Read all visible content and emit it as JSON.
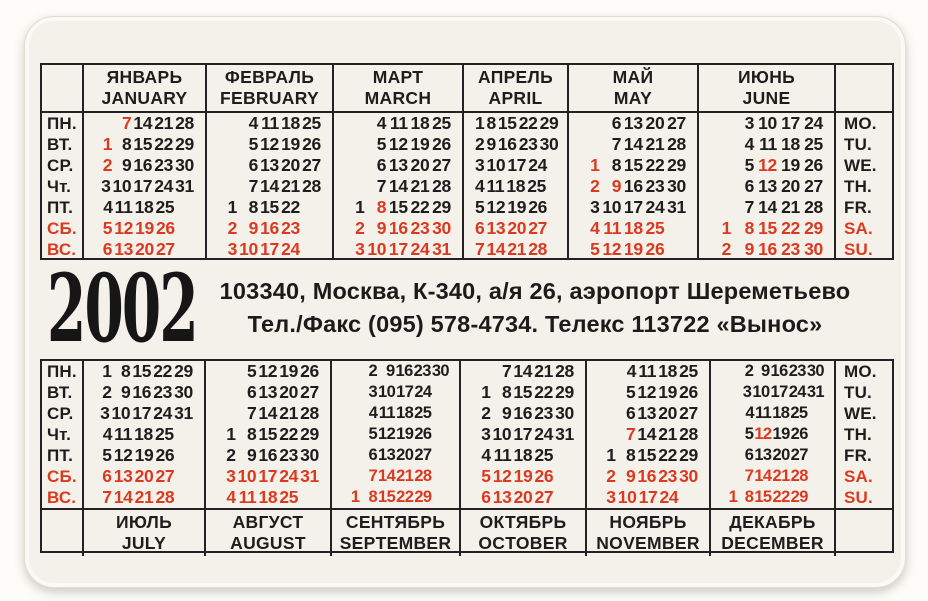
{
  "year": "2002",
  "address_line1": "103340, Москва, К-340, а/я 26, аэропорт Шереметьево",
  "address_line2": "Тел./Факс (095) 578-4734. Телекс 113722 «Вынос»",
  "weekdays_ru": [
    "ПН.",
    "ВТ.",
    "СР.",
    "Чт.",
    "ПТ.",
    "СБ.",
    "ВС."
  ],
  "weekdays_en": [
    "MO.",
    "TU.",
    "WE.",
    "TH.",
    "FR.",
    "SA.",
    "SU."
  ],
  "weekend_row_indexes": [
    5,
    6
  ],
  "colors": {
    "red": "#dc3a20",
    "ink": "#1d1d1d",
    "card_bg": "#f4f1ea"
  },
  "top_months": [
    {
      "ru": "ЯНВАРЬ",
      "en": "JANUARY",
      "rows": [
        [
          "",
          "*7",
          "14",
          "21",
          "28"
        ],
        [
          "*1",
          "8",
          "15",
          "22",
          "29"
        ],
        [
          "*2",
          "9",
          "16",
          "23",
          "30"
        ],
        [
          "3",
          "10",
          "17",
          "24",
          "31"
        ],
        [
          "4",
          "11",
          "18",
          "25",
          ""
        ],
        [
          "5",
          "12",
          "19",
          "26",
          ""
        ],
        [
          "6",
          "13",
          "20",
          "27",
          ""
        ]
      ]
    },
    {
      "ru": "ФЕВРАЛЬ",
      "en": "FEBRUARY",
      "rows": [
        [
          "",
          "4",
          "11",
          "18",
          "25"
        ],
        [
          "",
          "5",
          "12",
          "19",
          "26"
        ],
        [
          "",
          "6",
          "13",
          "20",
          "27"
        ],
        [
          "",
          "7",
          "14",
          "21",
          "28"
        ],
        [
          "1",
          "8",
          "15",
          "22",
          ""
        ],
        [
          "2",
          "9",
          "16",
          "23",
          ""
        ],
        [
          "3",
          "10",
          "17",
          "24",
          ""
        ]
      ]
    },
    {
      "ru": "МАРТ",
      "en": "MARCH",
      "rows": [
        [
          "",
          "4",
          "11",
          "18",
          "25"
        ],
        [
          "",
          "5",
          "12",
          "19",
          "26"
        ],
        [
          "",
          "6",
          "13",
          "20",
          "27"
        ],
        [
          "",
          "7",
          "14",
          "21",
          "28"
        ],
        [
          "1",
          "*8",
          "15",
          "22",
          "29"
        ],
        [
          "2",
          "9",
          "16",
          "23",
          "30"
        ],
        [
          "3",
          "10",
          "17",
          "24",
          "31"
        ]
      ]
    },
    {
      "ru": "АПРЕЛЬ",
      "en": "APRIL",
      "rows": [
        [
          "1",
          "8",
          "15",
          "22",
          "29"
        ],
        [
          "2",
          "9",
          "16",
          "23",
          "30"
        ],
        [
          "3",
          "10",
          "17",
          "24",
          ""
        ],
        [
          "4",
          "11",
          "18",
          "25",
          ""
        ],
        [
          "5",
          "12",
          "19",
          "26",
          ""
        ],
        [
          "6",
          "13",
          "20",
          "27",
          ""
        ],
        [
          "7",
          "14",
          "21",
          "28",
          ""
        ]
      ]
    },
    {
      "ru": "МАЙ",
      "en": "MAY",
      "rows": [
        [
          "",
          "6",
          "13",
          "20",
          "27"
        ],
        [
          "",
          "7",
          "14",
          "21",
          "28"
        ],
        [
          "*1",
          "8",
          "15",
          "22",
          "29"
        ],
        [
          "*2",
          "*9",
          "16",
          "23",
          "30"
        ],
        [
          "3",
          "10",
          "17",
          "24",
          "31"
        ],
        [
          "4",
          "11",
          "18",
          "25",
          ""
        ],
        [
          "5",
          "12",
          "19",
          "26",
          ""
        ]
      ]
    },
    {
      "ru": "ИЮНЬ",
      "en": "JUNE",
      "rows": [
        [
          "",
          "3",
          "10",
          "17",
          "24"
        ],
        [
          "",
          "4",
          "11",
          "18",
          "25"
        ],
        [
          "",
          "5",
          "*12",
          "19",
          "26"
        ],
        [
          "",
          "6",
          "13",
          "20",
          "27"
        ],
        [
          "",
          "7",
          "14",
          "21",
          "28"
        ],
        [
          "1",
          "8",
          "15",
          "22",
          "29"
        ],
        [
          "2",
          "9",
          "16",
          "23",
          "30"
        ]
      ]
    }
  ],
  "bottom_months": [
    {
      "ru": "ИЮЛЬ",
      "en": "JULY",
      "rows": [
        [
          "1",
          "8",
          "15",
          "22",
          "29"
        ],
        [
          "2",
          "9",
          "16",
          "23",
          "30"
        ],
        [
          "3",
          "10",
          "17",
          "24",
          "31"
        ],
        [
          "4",
          "11",
          "18",
          "25",
          ""
        ],
        [
          "5",
          "12",
          "19",
          "26",
          ""
        ],
        [
          "6",
          "13",
          "20",
          "27",
          ""
        ],
        [
          "7",
          "14",
          "21",
          "28",
          ""
        ]
      ]
    },
    {
      "ru": "АВГУСТ",
      "en": "AUGUST",
      "rows": [
        [
          "",
          "5",
          "12",
          "19",
          "26"
        ],
        [
          "",
          "6",
          "13",
          "20",
          "27"
        ],
        [
          "",
          "7",
          "14",
          "21",
          "28"
        ],
        [
          "1",
          "8",
          "15",
          "22",
          "29"
        ],
        [
          "2",
          "9",
          "16",
          "23",
          "30"
        ],
        [
          "3",
          "10",
          "17",
          "24",
          "31"
        ],
        [
          "4",
          "11",
          "18",
          "25",
          ""
        ]
      ]
    },
    {
      "ru": "СЕНТЯБРЬ",
      "en": "SEPTEMBER",
      "rows": [
        [
          "",
          "2",
          "9",
          "16",
          "23",
          "30"
        ],
        [
          "",
          "3",
          "10",
          "17",
          "24",
          ""
        ],
        [
          "",
          "4",
          "11",
          "18",
          "25",
          ""
        ],
        [
          "",
          "5",
          "12",
          "19",
          "26",
          ""
        ],
        [
          "",
          "6",
          "13",
          "20",
          "27",
          ""
        ],
        [
          "",
          "7",
          "14",
          "21",
          "28",
          ""
        ],
        [
          "1",
          "8",
          "15",
          "22",
          "29",
          ""
        ]
      ]
    },
    {
      "ru": "ОКТЯБРЬ",
      "en": "OCTOBER",
      "rows": [
        [
          "",
          "7",
          "14",
          "21",
          "28"
        ],
        [
          "1",
          "8",
          "15",
          "22",
          "29"
        ],
        [
          "2",
          "9",
          "16",
          "23",
          "30"
        ],
        [
          "3",
          "10",
          "17",
          "24",
          "31"
        ],
        [
          "4",
          "11",
          "18",
          "25",
          ""
        ],
        [
          "5",
          "12",
          "19",
          "26",
          ""
        ],
        [
          "6",
          "13",
          "20",
          "27",
          ""
        ]
      ]
    },
    {
      "ru": "НОЯБРЬ",
      "en": "NOVEMBER",
      "rows": [
        [
          "",
          "4",
          "11",
          "18",
          "25"
        ],
        [
          "",
          "5",
          "12",
          "19",
          "26"
        ],
        [
          "",
          "6",
          "13",
          "20",
          "27"
        ],
        [
          "",
          "*7",
          "14",
          "21",
          "28"
        ],
        [
          "1",
          "8",
          "15",
          "22",
          "29"
        ],
        [
          "2",
          "9",
          "16",
          "23",
          "30"
        ],
        [
          "3",
          "10",
          "17",
          "24",
          ""
        ]
      ]
    },
    {
      "ru": "ДЕКАБРЬ",
      "en": "DECEMBER",
      "rows": [
        [
          "",
          "2",
          "9",
          "16",
          "23",
          "30"
        ],
        [
          "",
          "3",
          "10",
          "17",
          "24",
          "31"
        ],
        [
          "",
          "4",
          "11",
          "18",
          "25",
          ""
        ],
        [
          "",
          "5",
          "*12",
          "19",
          "26",
          ""
        ],
        [
          "",
          "6",
          "13",
          "20",
          "27",
          ""
        ],
        [
          "",
          "7",
          "14",
          "21",
          "28",
          ""
        ],
        [
          "1",
          "8",
          "15",
          "22",
          "29",
          ""
        ]
      ]
    }
  ]
}
